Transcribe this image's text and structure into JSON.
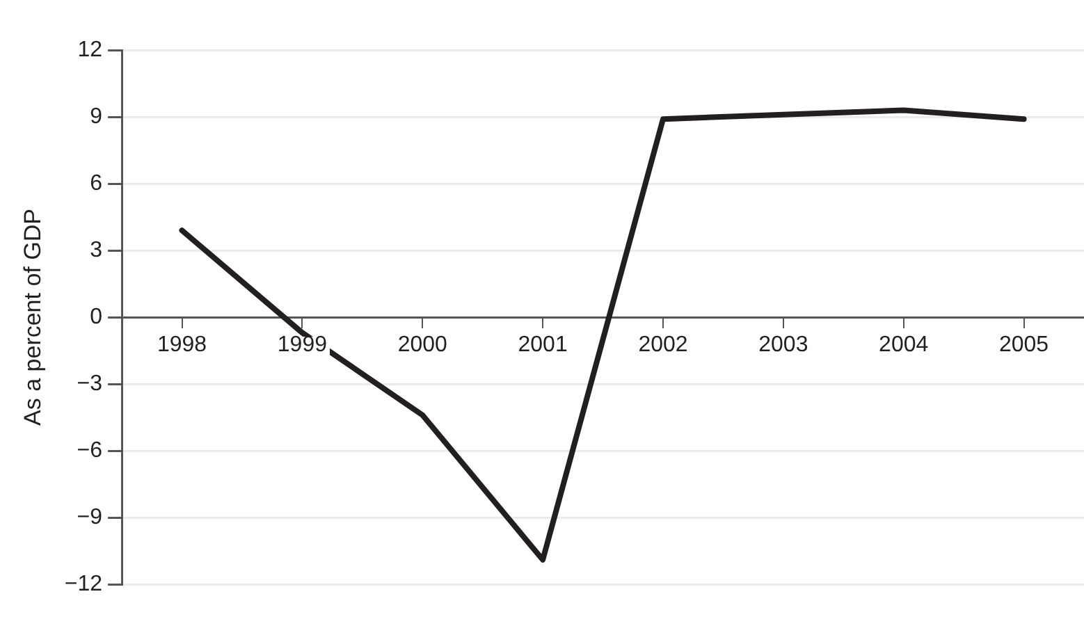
{
  "chart_data": {
    "type": "line",
    "ylabel": "As a percent of GDP",
    "categories": [
      "1998",
      "1999",
      "2000",
      "2001",
      "2002",
      "2003",
      "2004",
      "2005"
    ],
    "series": [
      {
        "color": "#231f20",
        "values": [
          3.9,
          -0.7,
          -4.4,
          -10.9,
          8.9,
          9.1,
          9.3,
          8.9
        ]
      }
    ],
    "ylim": [
      -12,
      12
    ],
    "yticks": [
      -12,
      -9,
      -6,
      -3,
      0,
      3,
      6,
      9,
      12
    ],
    "grid": "y",
    "legend": false,
    "marker": "none",
    "line_style": "solid"
  }
}
